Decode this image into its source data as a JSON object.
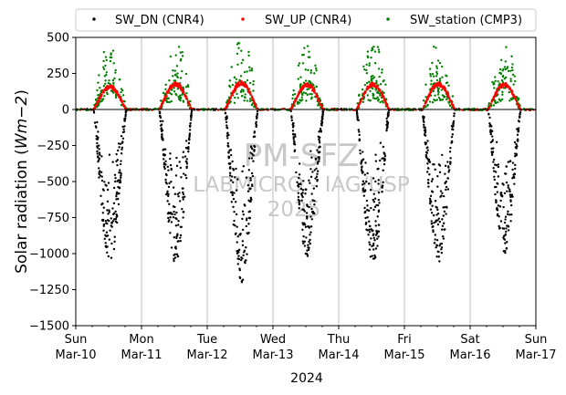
{
  "chart_data": {
    "type": "scatter",
    "ylabel_prefix": "Solar radiation (",
    "ylabel_unit": "Wm−2",
    "ylabel_suffix": ")",
    "xlabel": "2024",
    "ylim": [
      -1500,
      500
    ],
    "yticks": [
      500,
      250,
      0,
      -250,
      -500,
      -750,
      -1000,
      -1250,
      -1500
    ],
    "xlim": [
      "2024-03-10",
      "2024-03-17"
    ],
    "xticks": [
      {
        "date": "2024-03-10",
        "day": "Sun",
        "label": "Mar-10"
      },
      {
        "date": "2024-03-11",
        "day": "Mon",
        "label": "Mar-11"
      },
      {
        "date": "2024-03-12",
        "day": "Tue",
        "label": "Mar-12"
      },
      {
        "date": "2024-03-13",
        "day": "Wed",
        "label": "Mar-13"
      },
      {
        "date": "2024-03-14",
        "day": "Thu",
        "label": "Mar-14"
      },
      {
        "date": "2024-03-15",
        "day": "Fri",
        "label": "Mar-15"
      },
      {
        "date": "2024-03-16",
        "day": "Sat",
        "label": "Mar-16"
      },
      {
        "date": "2024-03-17",
        "day": "Sun",
        "label": "Mar-17"
      }
    ],
    "grid": "vertical",
    "zero_line": true,
    "legend_position": "top",
    "series": [
      {
        "name": "SW_DN (CNR4)",
        "color": "#000000",
        "marker": "dot",
        "daily_peak": [
          -1080,
          -1070,
          -1200,
          -1020,
          -1070,
          -1060,
          -1000
        ]
      },
      {
        "name": "SW_UP (CNR4)",
        "color": "#ff0000",
        "marker": "dot",
        "daily_peak": [
          170,
          190,
          200,
          185,
          190,
          190,
          185
        ]
      },
      {
        "name": "SW_station (CMP3)",
        "color": "#008000",
        "marker": "dot",
        "daily_peak": [
          480,
          470,
          500,
          480,
          490,
          490,
          460
        ]
      }
    ],
    "watermark": [
      "PM-SFZ",
      "LABMICRO - IAG/USP",
      "2025"
    ]
  }
}
